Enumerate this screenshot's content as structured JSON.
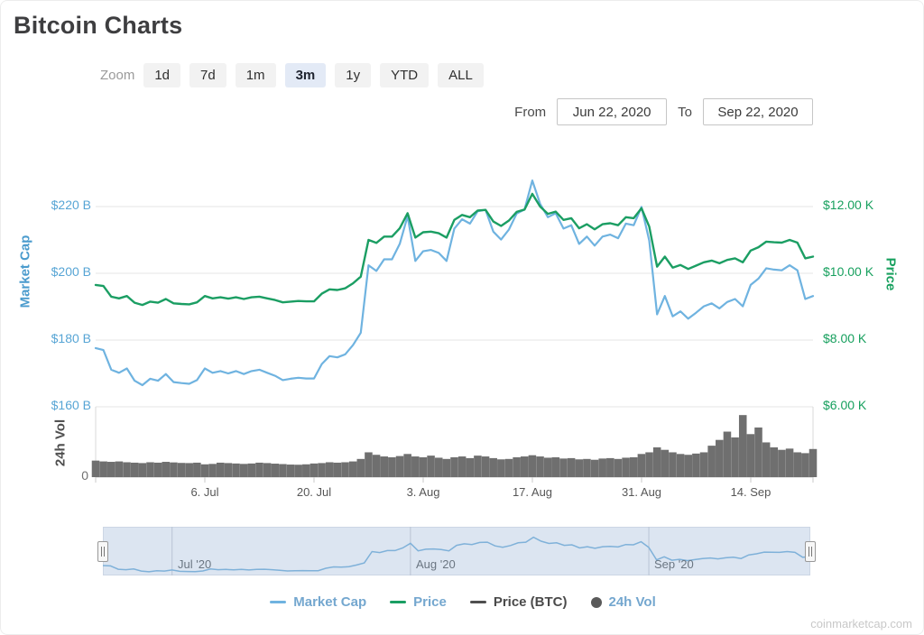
{
  "page": {
    "title": "Bitcoin Charts",
    "watermark": "coinmarketcap.com"
  },
  "controls": {
    "zoom_label": "Zoom",
    "zoom_buttons": [
      "1d",
      "7d",
      "1m",
      "3m",
      "1y",
      "YTD",
      "ALL"
    ],
    "selected_zoom": "3m",
    "from_label": "From",
    "from_value": "Jun 22, 2020",
    "to_label": "To",
    "to_value": "Sep 22, 2020"
  },
  "legend": {
    "items": [
      {
        "label": "Market Cap",
        "marker": "line",
        "marker_color": "#6fb3e0",
        "label_color": "#74a7cf"
      },
      {
        "label": "Price",
        "marker": "line",
        "marker_color": "#1b9e63",
        "label_color": "#74a7cf"
      },
      {
        "label": "Price (BTC)",
        "marker": "line",
        "marker_color": "#4f4f4f",
        "label_color": "#4a4a4a"
      },
      {
        "label": "24h Vol",
        "marker": "circle",
        "marker_color": "#5a5a5a",
        "label_color": "#74a7cf"
      }
    ]
  },
  "chart_data": {
    "type": "line",
    "title": "Bitcoin Charts",
    "x_start": "2020-06-22",
    "x_end": "2020-09-22",
    "interval": "daily",
    "x_ticks": [
      "6. Jul",
      "20. Jul",
      "3. Aug",
      "17. Aug",
      "31. Aug",
      "14. Sep"
    ],
    "left_axis": {
      "title": "Market Cap",
      "unit": "USD billions",
      "ticks": [
        "$220 B",
        "$200 B",
        "$180 B",
        "$160 B"
      ],
      "tick_values": [
        220,
        200,
        180,
        160
      ]
    },
    "right_axis": {
      "title": "Price",
      "unit": "USD thousands",
      "ticks": [
        "$12.00 K",
        "$10.00 K",
        "$8.00 K",
        "$6.00 K"
      ],
      "tick_values": [
        12,
        10,
        8,
        6
      ]
    },
    "volume_axis": {
      "title": "24h Vol",
      "ticks": [
        "0"
      ],
      "min": 0,
      "max": 85
    },
    "navigator": {
      "labels": [
        "Jul '20",
        "Aug '20",
        "Sep '20"
      ],
      "label_days": [
        9,
        40,
        71
      ],
      "line_color": "#7fb1d9",
      "background": "#dce5f1"
    },
    "grid_color": "#e6e6e6",
    "series": [
      {
        "name": "Market Cap",
        "type": "line",
        "axis": "left",
        "color": "#6fb3e0",
        "values": [
          177.6,
          177.0,
          171.1,
          170.2,
          171.5,
          167.8,
          166.5,
          168.4,
          167.8,
          169.8,
          167.4,
          167.1,
          166.9,
          168.0,
          171.5,
          170.2,
          170.7,
          170.0,
          170.7,
          169.8,
          170.7,
          171.1,
          170.2,
          169.3,
          168.0,
          168.4,
          168.7,
          168.5,
          168.5,
          172.8,
          175.2,
          174.8,
          175.7,
          178.5,
          182.2,
          202.4,
          200.7,
          204.2,
          204.2,
          208.8,
          217.1,
          203.7,
          206.6,
          207.0,
          206.1,
          203.7,
          213.4,
          216.2,
          214.9,
          218.6,
          219.0,
          212.5,
          210.1,
          213.1,
          217.9,
          219.1,
          227.8,
          220.8,
          216.8,
          218.0,
          213.4,
          214.4,
          208.8,
          211.0,
          208.3,
          211.0,
          211.6,
          210.5,
          214.9,
          214.4,
          219.9,
          209.8,
          187.7,
          193.2,
          187.1,
          188.6,
          186.4,
          188.2,
          190.1,
          191.0,
          189.5,
          191.4,
          192.3,
          190.1,
          196.5,
          198.4,
          201.5,
          201.1,
          200.9,
          202.4,
          200.9,
          192.3,
          193.2
        ]
      },
      {
        "name": "Price",
        "type": "line",
        "axis": "right",
        "color": "#1b9e63",
        "values": [
          9.65,
          9.62,
          9.3,
          9.25,
          9.32,
          9.12,
          9.05,
          9.15,
          9.12,
          9.23,
          9.1,
          9.08,
          9.07,
          9.13,
          9.32,
          9.25,
          9.28,
          9.24,
          9.28,
          9.23,
          9.28,
          9.3,
          9.25,
          9.2,
          9.13,
          9.15,
          9.17,
          9.16,
          9.16,
          9.39,
          9.52,
          9.5,
          9.55,
          9.7,
          9.9,
          11.0,
          10.91,
          11.1,
          11.1,
          11.35,
          11.8,
          11.07,
          11.23,
          11.25,
          11.2,
          11.07,
          11.6,
          11.75,
          11.68,
          11.88,
          11.9,
          11.55,
          11.42,
          11.58,
          11.84,
          11.91,
          12.38,
          12.0,
          11.78,
          11.85,
          11.6,
          11.65,
          11.35,
          11.47,
          11.32,
          11.47,
          11.5,
          11.44,
          11.68,
          11.65,
          11.95,
          11.4,
          10.2,
          10.5,
          10.17,
          10.25,
          10.13,
          10.23,
          10.33,
          10.38,
          10.3,
          10.4,
          10.45,
          10.33,
          10.68,
          10.78,
          10.95,
          10.93,
          10.92,
          11.0,
          10.92,
          10.45,
          10.5
        ]
      },
      {
        "name": "24h Vol",
        "type": "column",
        "axis": "volume",
        "color": "#6f6f6f",
        "values": [
          20,
          19,
          18.5,
          19,
          18,
          17.5,
          17,
          18,
          17.5,
          18.5,
          17.8,
          17.2,
          17,
          17.5,
          15.5,
          16,
          17.5,
          17,
          16.5,
          16,
          16.5,
          17.5,
          17,
          16.3,
          15.8,
          15.2,
          15,
          15.5,
          16.5,
          17,
          18,
          17.5,
          18,
          19,
          22,
          30,
          27,
          25,
          24,
          25.5,
          28,
          25,
          24,
          26,
          23.5,
          22,
          24,
          25,
          23,
          26,
          25,
          23,
          21.5,
          22,
          24,
          25,
          26.5,
          25,
          23.5,
          24,
          22.5,
          23,
          21.5,
          22,
          21,
          22.5,
          23,
          22,
          23.5,
          24,
          28,
          30,
          36,
          33,
          30,
          28,
          27,
          28.5,
          30,
          38,
          45,
          55,
          48,
          75,
          52,
          60,
          42,
          36,
          33,
          34.5,
          30,
          29,
          34
        ]
      }
    ]
  }
}
